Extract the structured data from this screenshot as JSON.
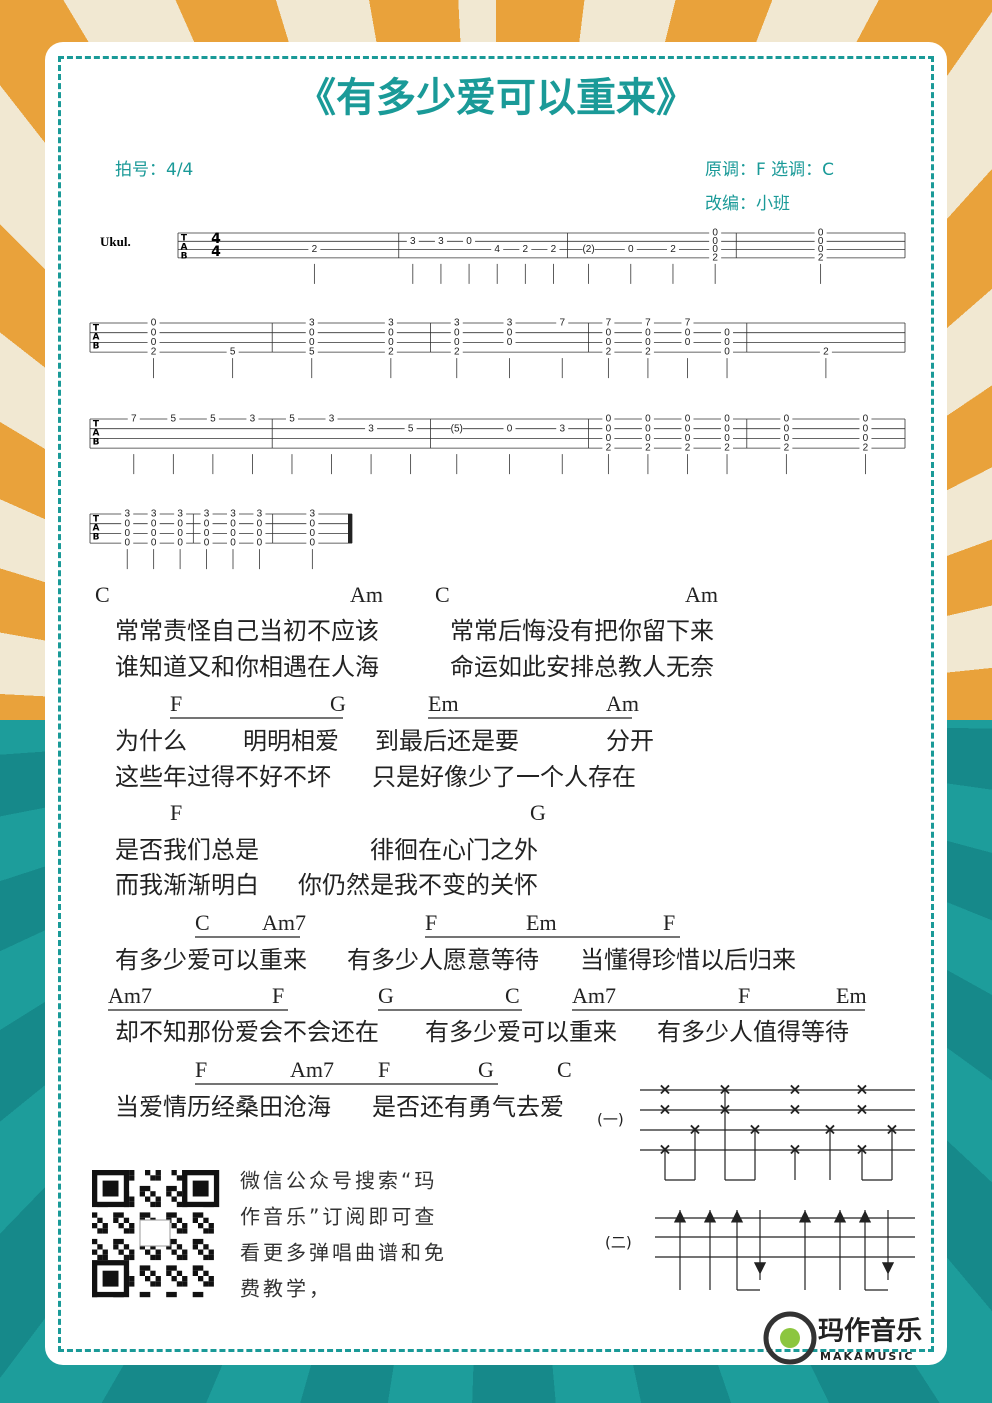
{
  "header": {
    "title": "《有多少爱可以重来》",
    "meter": "拍号：4/4",
    "key": "原调：F 选调：C",
    "arranger": "改编：小班"
  },
  "tab": {
    "instrument": "Ukul.",
    "clef": [
      "T",
      "A",
      "B"
    ],
    "time_signature": [
      "4",
      "4"
    ],
    "staves": [
      [
        [
          [
            null,
            null,
            "2",
            null
          ]
        ],
        [
          [
            null,
            "3",
            null,
            null
          ],
          [
            null,
            "3",
            null,
            null
          ],
          [
            null,
            "0",
            null,
            null
          ],
          [
            null,
            null,
            "4",
            null
          ],
          [
            null,
            null,
            "2",
            null
          ],
          [
            null,
            null,
            "2",
            null
          ]
        ],
        [
          [
            null,
            null,
            "(2)",
            null
          ],
          [
            null,
            null,
            "0",
            null
          ],
          [
            null,
            null,
            "2",
            null
          ],
          [
            "0",
            "0",
            "0",
            "2"
          ]
        ],
        [
          [
            "0",
            "0",
            "0",
            "2"
          ]
        ]
      ],
      [
        [
          [
            "0",
            "0",
            "0",
            "2"
          ],
          [
            null,
            null,
            null,
            "5"
          ]
        ],
        [
          [
            "3",
            "0",
            "0",
            "5"
          ],
          [
            "3",
            "0",
            "0",
            "2"
          ]
        ],
        [
          [
            "3",
            "0",
            "0",
            "2"
          ],
          [
            "3",
            "0",
            "0",
            null
          ],
          [
            "7",
            null,
            null,
            null
          ]
        ],
        [
          [
            "7",
            "0",
            "0",
            "2"
          ],
          [
            "7",
            "0",
            "0",
            "2"
          ],
          [
            "7",
            "0",
            "0",
            null
          ],
          [
            null,
            "0",
            "0",
            "0"
          ]
        ],
        [
          [
            null,
            null,
            null,
            "2"
          ]
        ]
      ],
      [
        [
          [
            "7",
            null,
            null,
            null
          ],
          [
            "5",
            null,
            null,
            null
          ],
          [
            "5",
            null,
            null,
            null
          ],
          [
            "3",
            null,
            null,
            null
          ]
        ],
        [
          [
            "5",
            null,
            null,
            null
          ],
          [
            "3",
            null,
            null,
            null
          ],
          [
            null,
            "3",
            null,
            null
          ],
          [
            null,
            "5",
            null,
            null
          ]
        ],
        [
          [
            null,
            "(5)",
            null,
            null
          ],
          [
            null,
            "0",
            null,
            null
          ],
          [
            null,
            "3",
            null,
            null
          ]
        ],
        [
          [
            "0",
            "0",
            "0",
            "2"
          ],
          [
            "0",
            "0",
            "0",
            "2"
          ],
          [
            "0",
            "0",
            "0",
            "2"
          ],
          [
            "0",
            "0",
            "0",
            "2"
          ]
        ],
        [
          [
            "0",
            "0",
            "0",
            "2"
          ],
          [
            "0",
            "0",
            "0",
            "2"
          ]
        ]
      ],
      [
        [
          [
            "3",
            "0",
            "0",
            "0"
          ],
          [
            "3",
            "0",
            "0",
            "0"
          ],
          [
            "3",
            "0",
            "0",
            "0"
          ]
        ],
        [
          [
            "3",
            "0",
            "0",
            "0"
          ],
          [
            "3",
            "0",
            "0",
            "0"
          ],
          [
            "3",
            "0",
            "0",
            "0"
          ]
        ],
        [
          [
            "3",
            "0",
            "0",
            "0"
          ]
        ]
      ]
    ]
  },
  "song": [
    {
      "chords": [
        "C",
        "Am",
        "C",
        "Am"
      ],
      "lines": [
        [
          "常常责怪自己当初不应该",
          "常常后悔没有把你留下来"
        ],
        [
          "谁知道又和你相遇在人海",
          "命运如此安排总教人无奈"
        ]
      ]
    },
    {
      "chords": [
        "F",
        "G",
        "Em",
        "Am"
      ],
      "lines": [
        [
          "为什么",
          "明明相爱",
          "到最后还是要",
          "分开"
        ],
        [
          "这些年过得不好不坏",
          "只是好像少了一个人存在"
        ]
      ]
    },
    {
      "chords": [
        "F",
        "G"
      ],
      "lines": [
        [
          "是否我们总是",
          "徘徊在心门之外"
        ],
        [
          "而我渐渐明白",
          "你仍然是我不变的关怀"
        ]
      ]
    },
    {
      "chords": [
        "C",
        "Am7",
        "F",
        "Em",
        "F"
      ],
      "lines": [
        [
          "有多少爱可以重来",
          "有多少人愿意等待",
          "当懂得珍惜以后归来"
        ]
      ]
    },
    {
      "chords": [
        "Am7",
        "F",
        "G",
        "C",
        "Am7",
        "F",
        "Em"
      ],
      "lines": [
        [
          "却不知那份爱会不会还在",
          "有多少爱可以重来",
          "有多少人值得等待"
        ]
      ]
    },
    {
      "chords": [
        "F",
        "Am7",
        "F",
        "G",
        "C"
      ],
      "lines": [
        [
          "当爱情历经桑田沧海",
          "是否还有勇气去爱"
        ]
      ]
    }
  ],
  "rhythm": {
    "pattern_1": "(一)",
    "pattern_2": "(二)"
  },
  "promo": {
    "lines": [
      "微信公众号搜索“玛",
      "作音乐”订阅即可查",
      "看更多弹唱曲谱和免",
      "费教学，"
    ]
  },
  "logo": {
    "name": "玛作音乐",
    "latin": "MAKAMUSIC"
  }
}
